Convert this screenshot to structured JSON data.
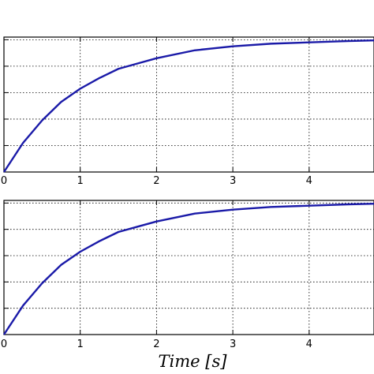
{
  "chart_data": [
    {
      "type": "line",
      "xlim": [
        0,
        4.85
      ],
      "ylim": [
        0,
        1.02
      ],
      "xticks": [
        "0",
        "1",
        "2",
        "3",
        "4"
      ],
      "xtick_values": [
        0,
        1,
        2,
        3,
        4
      ],
      "ygrid": [
        0.2,
        0.4,
        0.6,
        0.8,
        1.0
      ],
      "grid": true,
      "xlabel": "",
      "series": [
        {
          "color": "#1a1aa8",
          "x": [
            0,
            0.25,
            0.5,
            0.75,
            1.0,
            1.25,
            1.5,
            1.75,
            2.0,
            2.5,
            3.0,
            3.5,
            4.0,
            4.5,
            4.85
          ],
          "y": [
            0,
            0.22,
            0.39,
            0.53,
            0.63,
            0.71,
            0.78,
            0.82,
            0.86,
            0.92,
            0.95,
            0.97,
            0.98,
            0.99,
            0.995
          ]
        }
      ]
    },
    {
      "type": "line",
      "xlim": [
        0,
        4.85
      ],
      "ylim": [
        0,
        1.02
      ],
      "xticks": [
        "0",
        "1",
        "2",
        "3",
        "4"
      ],
      "xtick_values": [
        0,
        1,
        2,
        3,
        4
      ],
      "ygrid": [
        0.2,
        0.4,
        0.6,
        0.8,
        1.0
      ],
      "grid": true,
      "xlabel": "Time [s]",
      "series": [
        {
          "color": "#1a1aa8",
          "x": [
            0,
            0.25,
            0.5,
            0.75,
            1.0,
            1.25,
            1.5,
            1.75,
            2.0,
            2.5,
            3.0,
            3.5,
            4.0,
            4.5,
            4.85
          ],
          "y": [
            0,
            0.22,
            0.39,
            0.53,
            0.63,
            0.71,
            0.78,
            0.82,
            0.86,
            0.92,
            0.95,
            0.97,
            0.98,
            0.99,
            0.995
          ]
        }
      ]
    }
  ]
}
